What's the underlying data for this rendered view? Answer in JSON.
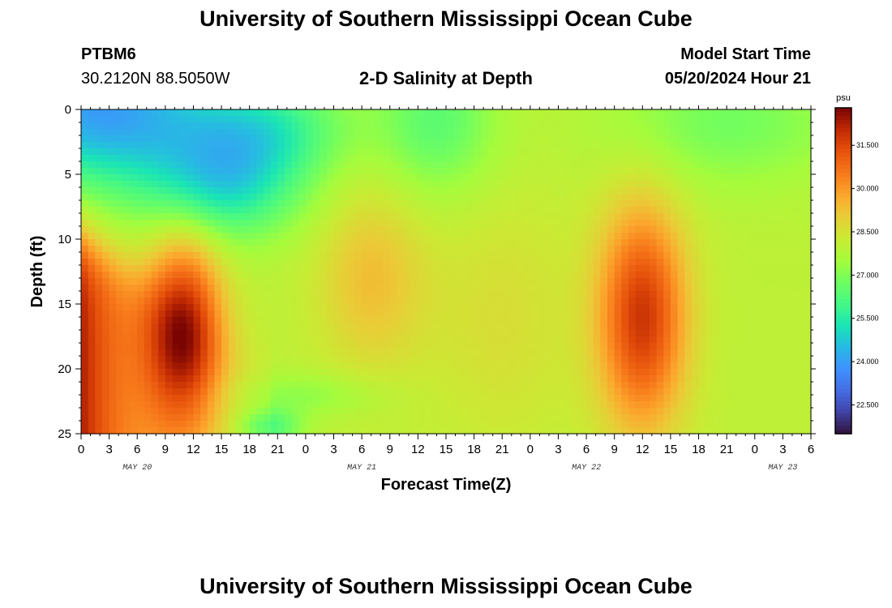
{
  "header": {
    "title": "University of Southern Mississippi Ocean Cube",
    "station_id": "PTBM6",
    "station_coords": "30.2120N  88.5050W",
    "plot_title": "2-D Salinity at Depth",
    "model_label": "Model Start Time",
    "model_time": "05/20/2024 Hour 21"
  },
  "footer": {
    "title": "University of Southern Mississippi Ocean Cube"
  },
  "chart_data": {
    "type": "heatmap",
    "title": "2-D Salinity at Depth",
    "xlabel": "Forecast Time(Z)",
    "ylabel": "Depth (ft)",
    "x_range_hours": [
      0,
      78
    ],
    "x_tick_labels": [
      "0",
      "3",
      "6",
      "9",
      "12",
      "15",
      "18",
      "21",
      "0",
      "3",
      "6",
      "9",
      "12",
      "15",
      "18",
      "21",
      "0",
      "3",
      "6",
      "9",
      "12",
      "15",
      "18",
      "21",
      "0",
      "3",
      "6"
    ],
    "x_tick_step_hours": 3,
    "day_labels": [
      {
        "label": "MAY 20",
        "hour": 6
      },
      {
        "label": "MAY 21",
        "hour": 30
      },
      {
        "label": "MAY 22",
        "hour": 54
      },
      {
        "label": "MAY 23",
        "hour": 75
      }
    ],
    "ylim": [
      0,
      25
    ],
    "y_reversed": true,
    "y_tick_labels": [
      "0",
      "5",
      "10",
      "15",
      "20",
      "25"
    ],
    "colorbar": {
      "unit": "psu",
      "range": [
        21.5,
        32.8
      ],
      "ticks": [
        "22.500",
        "24.000",
        "25.500",
        "27.000",
        "28.500",
        "30.000",
        "31.500"
      ],
      "colormap": "turbo"
    },
    "features": [
      {
        "description": "fresh surface layer",
        "hour": [
          0,
          18
        ],
        "depth": [
          0,
          8
        ],
        "salinity_psu": 23.5
      },
      {
        "description": "salty bottom wedge",
        "hour": [
          0,
          8
        ],
        "depth": [
          10,
          25
        ],
        "salinity_psu": 32.3
      },
      {
        "description": "salty core",
        "hour": 11,
        "depth": 17,
        "salinity_psu": 32.0
      },
      {
        "description": "salty core",
        "hour": 60,
        "depth": 16,
        "salinity_psu": 31.8
      },
      {
        "description": "mid layer",
        "hour": [
          40,
          50
        ],
        "depth": [
          0,
          25
        ],
        "salinity_psu": 28.0
      }
    ]
  }
}
